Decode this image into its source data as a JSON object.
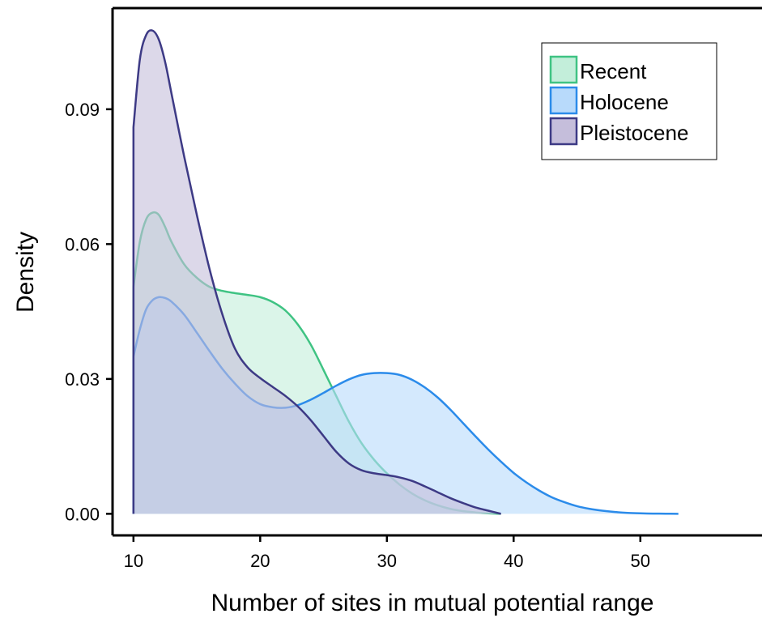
{
  "chart_data": {
    "type": "area",
    "subtype": "density",
    "xlabel": "Number of sites in mutual potential range",
    "ylabel": "Density",
    "xlim": [
      8.35,
      59.6
    ],
    "ylim": [
      -0.0048,
      0.1125
    ],
    "xticks": [
      10,
      20,
      30,
      40,
      50
    ],
    "xtick_labels": [
      "10",
      "20",
      "30",
      "40",
      "50"
    ],
    "yticks": [
      0.0,
      0.03,
      0.06,
      0.09
    ],
    "ytick_labels": [
      "0.00",
      "0.03",
      "0.06",
      "0.09"
    ],
    "grid": false,
    "legend_position": "top-right",
    "series": [
      {
        "name": "Recent",
        "fill": "#c3eeda",
        "stroke": "#3fc383",
        "x": [
          10,
          10.5,
          11,
          11.5,
          12,
          12.5,
          13,
          14,
          15,
          16,
          17,
          18,
          19,
          20,
          21,
          22,
          23,
          24,
          25,
          26,
          27,
          28,
          29,
          30,
          31,
          32,
          33,
          34,
          35,
          36,
          37,
          38,
          39
        ],
        "y": [
          0.0505,
          0.0605,
          0.0655,
          0.067,
          0.0665,
          0.0638,
          0.0605,
          0.0555,
          0.0525,
          0.0505,
          0.0496,
          0.0491,
          0.0487,
          0.0482,
          0.0471,
          0.0452,
          0.042,
          0.0376,
          0.032,
          0.0262,
          0.0205,
          0.0157,
          0.012,
          0.009,
          0.0065,
          0.0045,
          0.003,
          0.0019,
          0.0011,
          0.0006,
          0.0003,
          0.0001,
          0.0
        ]
      },
      {
        "name": "Holocene",
        "fill": "#b8dafb",
        "stroke": "#2b8bea",
        "x": [
          10,
          10.5,
          11,
          11.5,
          12,
          12.5,
          13,
          14,
          15,
          16,
          17,
          18,
          19,
          20,
          21,
          22,
          23,
          24,
          25,
          26,
          27,
          28,
          29,
          30,
          31,
          32,
          33,
          34,
          35,
          36,
          37,
          38,
          39,
          40,
          41,
          42,
          43,
          44,
          45,
          46,
          47,
          48,
          49,
          50,
          51,
          52,
          53
        ],
        "y": [
          0.035,
          0.041,
          0.0455,
          0.0475,
          0.0482,
          0.048,
          0.0472,
          0.0443,
          0.0403,
          0.0362,
          0.0323,
          0.029,
          0.0262,
          0.0244,
          0.0237,
          0.0236,
          0.0242,
          0.0254,
          0.0269,
          0.0285,
          0.0299,
          0.0309,
          0.0313,
          0.0313,
          0.0309,
          0.0298,
          0.0281,
          0.0259,
          0.0232,
          0.0202,
          0.0172,
          0.0143,
          0.0116,
          0.0091,
          0.007,
          0.0052,
          0.0037,
          0.0026,
          0.0017,
          0.0011,
          0.0007,
          0.0004,
          0.0002,
          0.0001,
          5e-05,
          2e-05,
          0.0
        ]
      },
      {
        "name": "Pleistocene",
        "fill": "#c5bedb",
        "stroke": "#3d3a85",
        "x": [
          10,
          10.5,
          11,
          11.5,
          12,
          12.5,
          13,
          14,
          15,
          16,
          17,
          18,
          19,
          20,
          21,
          22,
          23,
          24,
          25,
          26,
          27,
          28,
          29,
          30,
          31,
          32,
          33,
          34,
          35,
          36,
          37,
          38,
          39
        ],
        "y": [
          0.086,
          0.101,
          0.1065,
          0.1075,
          0.1055,
          0.1005,
          0.0935,
          0.0795,
          0.0665,
          0.0545,
          0.0445,
          0.0368,
          0.0326,
          0.0302,
          0.0282,
          0.0262,
          0.0238,
          0.0208,
          0.0173,
          0.0138,
          0.0112,
          0.0097,
          0.009,
          0.0086,
          0.0081,
          0.0073,
          0.0061,
          0.0048,
          0.0035,
          0.0024,
          0.0014,
          0.0007,
          0.0
        ]
      }
    ]
  }
}
